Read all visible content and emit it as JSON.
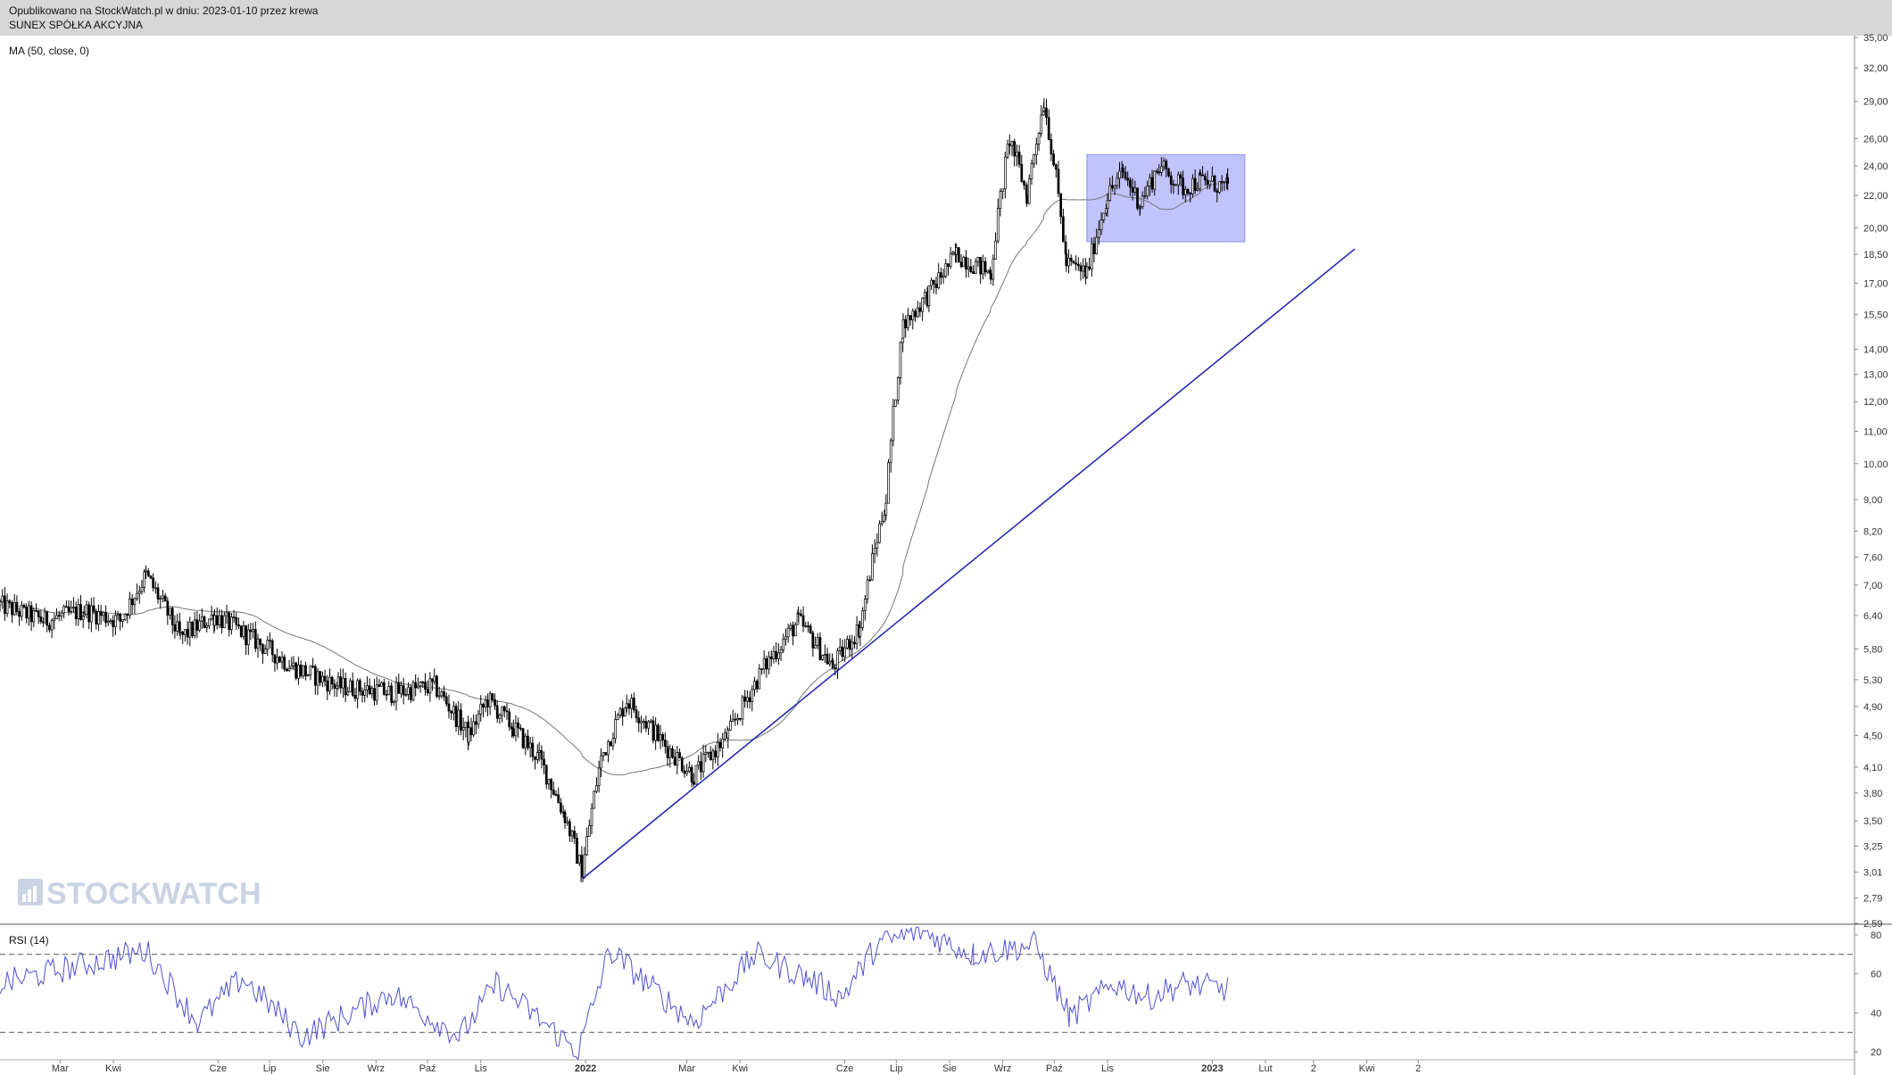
{
  "header": {
    "published": "Opublikowano na StockWatch.pl w dniu: 2023-01-10 przez krewa",
    "company": "SUNEX SPÓŁKA AKCYJNA"
  },
  "watermark": "STOCKWATCH",
  "chart_data": {
    "type": "candlestick",
    "scale": "log",
    "price_panel": {
      "indicator_label": "MA (50, close, 0)",
      "y_ticks": [
        "35,00",
        "32,00",
        "29,00",
        "26,00",
        "24,00",
        "22,00",
        "20,00",
        "18,50",
        "17,00",
        "15,50",
        "14,00",
        "13,00",
        "12,00",
        "11,00",
        "10,00",
        "9,00",
        "8,20",
        "7,60",
        "7,00",
        "6,40",
        "5,80",
        "5,30",
        "4,90",
        "4,50",
        "4,10",
        "3,80",
        "3,50",
        "3,25",
        "3,01",
        "2,79",
        "2,59"
      ],
      "ylim": [
        2.59,
        35.0
      ],
      "x_tick_labels": [
        "Mar",
        "Kwi",
        "Cze",
        "Lip",
        "Sie",
        "Wrz",
        "Paź",
        "Lis",
        "2022",
        "Mar",
        "Kwi",
        "Cze",
        "Lip",
        "Sie",
        "Wrz",
        "Paź",
        "Lis",
        "2023",
        "Lut",
        "2",
        "Kwi",
        "2"
      ],
      "price_anchors": [
        {
          "date": "2021-01-25",
          "close": 6.6
        },
        {
          "date": "2021-02-20",
          "close": 6.3
        },
        {
          "date": "2021-03-15",
          "close": 6.5
        },
        {
          "date": "2021-04-05",
          "close": 6.3
        },
        {
          "date": "2021-04-20",
          "close": 7.2
        },
        {
          "date": "2021-05-10",
          "close": 6.0
        },
        {
          "date": "2021-05-30",
          "close": 6.4
        },
        {
          "date": "2021-06-20",
          "close": 6.0
        },
        {
          "date": "2021-07-15",
          "close": 5.5
        },
        {
          "date": "2021-08-10",
          "close": 5.2
        },
        {
          "date": "2021-09-10",
          "close": 5.1
        },
        {
          "date": "2021-10-05",
          "close": 5.2
        },
        {
          "date": "2021-10-25",
          "close": 4.5
        },
        {
          "date": "2021-11-05",
          "close": 5.0
        },
        {
          "date": "2021-11-20",
          "close": 4.6
        },
        {
          "date": "2021-12-05",
          "close": 4.2
        },
        {
          "date": "2021-12-20",
          "close": 3.55
        },
        {
          "date": "2021-12-30",
          "close": 3.0
        },
        {
          "date": "2022-01-10",
          "close": 4.2
        },
        {
          "date": "2022-01-25",
          "close": 5.0
        },
        {
          "date": "2022-02-15",
          "close": 4.4
        },
        {
          "date": "2022-03-05",
          "close": 4.0
        },
        {
          "date": "2022-03-25",
          "close": 4.5
        },
        {
          "date": "2022-04-15",
          "close": 5.5
        },
        {
          "date": "2022-05-05",
          "close": 6.3
        },
        {
          "date": "2022-05-25",
          "close": 5.5
        },
        {
          "date": "2022-06-10",
          "close": 6.2
        },
        {
          "date": "2022-06-25",
          "close": 9.0
        },
        {
          "date": "2022-07-05",
          "close": 15.0
        },
        {
          "date": "2022-07-20",
          "close": 16.5
        },
        {
          "date": "2022-08-05",
          "close": 18.5
        },
        {
          "date": "2022-08-25",
          "close": 17.5
        },
        {
          "date": "2022-09-05",
          "close": 26.0
        },
        {
          "date": "2022-09-15",
          "close": 22.0
        },
        {
          "date": "2022-09-25",
          "close": 29.0
        },
        {
          "date": "2022-10-08",
          "close": 18.0
        },
        {
          "date": "2022-10-20",
          "close": 17.5
        },
        {
          "date": "2022-11-01",
          "close": 22.0
        },
        {
          "date": "2022-11-10",
          "close": 23.5
        },
        {
          "date": "2022-11-20",
          "close": 21.5
        },
        {
          "date": "2022-12-01",
          "close": 24.0
        },
        {
          "date": "2022-12-15",
          "close": 22.5
        },
        {
          "date": "2022-12-25",
          "close": 23.0
        },
        {
          "date": "2023-01-10",
          "close": 22.5
        }
      ],
      "trendline": {
        "from": {
          "date": "2021-12-30",
          "price": 2.95
        },
        "to": {
          "date": "2023-03-25",
          "price": 18.8
        }
      },
      "range_box": {
        "from": "2022-10-20",
        "to": "2023-01-20",
        "low": 19.2,
        "high": 24.8
      }
    },
    "rsi_panel": {
      "label": "RSI (14)",
      "y_ticks": [
        "80",
        "60",
        "40",
        "20"
      ],
      "ylim": [
        15,
        85
      ],
      "levels": [
        70,
        30
      ],
      "anchors": [
        {
          "date": "2021-01-25",
          "v": 55
        },
        {
          "date": "2021-04-20",
          "v": 72
        },
        {
          "date": "2021-05-20",
          "v": 35
        },
        {
          "date": "2021-06-15",
          "v": 58
        },
        {
          "date": "2021-07-20",
          "v": 28
        },
        {
          "date": "2021-09-10",
          "v": 50
        },
        {
          "date": "2021-10-20",
          "v": 28
        },
        {
          "date": "2021-11-10",
          "v": 55
        },
        {
          "date": "2021-12-28",
          "v": 20
        },
        {
          "date": "2022-01-15",
          "v": 72
        },
        {
          "date": "2022-02-10",
          "v": 52
        },
        {
          "date": "2022-03-05",
          "v": 35
        },
        {
          "date": "2022-04-10",
          "v": 70
        },
        {
          "date": "2022-05-10",
          "v": 58
        },
        {
          "date": "2022-05-30",
          "v": 48
        },
        {
          "date": "2022-06-20",
          "v": 75
        },
        {
          "date": "2022-07-15",
          "v": 82
        },
        {
          "date": "2022-08-15",
          "v": 70
        },
        {
          "date": "2022-09-20",
          "v": 75
        },
        {
          "date": "2022-10-10",
          "v": 38
        },
        {
          "date": "2022-11-05",
          "v": 55
        },
        {
          "date": "2022-11-25",
          "v": 48
        },
        {
          "date": "2022-12-15",
          "v": 55
        },
        {
          "date": "2023-01-10",
          "v": 52
        }
      ]
    }
  }
}
